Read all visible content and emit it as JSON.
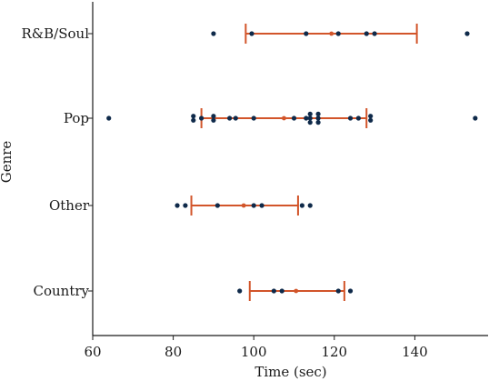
{
  "chart_data": {
    "type": "scatter",
    "xlabel": "Time (sec)",
    "ylabel": "Genre",
    "xlim": [
      60,
      155
    ],
    "x_ticks": [
      60,
      80,
      100,
      120,
      140
    ],
    "x_tick_labels": [
      "60",
      "80",
      "100",
      "120",
      "140"
    ],
    "categories": [
      "R&B/Soul",
      "Pop",
      "Other",
      "Country"
    ],
    "grid": false,
    "colors": {
      "points": "#0f2a4a",
      "interval": "#d2552a",
      "axis": "#1a1a1a"
    },
    "series": [
      {
        "category": "R&B/Soul",
        "points": [
          90,
          99.5,
          113,
          121,
          128,
          130,
          153
        ],
        "interval": {
          "low": 98,
          "mean": 119.3,
          "high": 140.5
        }
      },
      {
        "category": "Pop",
        "points": [
          64,
          85,
          85,
          87,
          90,
          90,
          94,
          95.5,
          100,
          110,
          113,
          114,
          114,
          114,
          116,
          116,
          116,
          124,
          126,
          129,
          129,
          155
        ],
        "interval": {
          "low": 87,
          "mean": 107.5,
          "high": 128
        }
      },
      {
        "category": "Other",
        "points": [
          81,
          83,
          91,
          100,
          102,
          112,
          114
        ],
        "interval": {
          "low": 84.5,
          "mean": 97.5,
          "high": 111
        }
      },
      {
        "category": "Country",
        "points": [
          96.5,
          105,
          107,
          121,
          124
        ],
        "interval": {
          "low": 99,
          "mean": 110.5,
          "high": 122.5
        }
      }
    ]
  }
}
